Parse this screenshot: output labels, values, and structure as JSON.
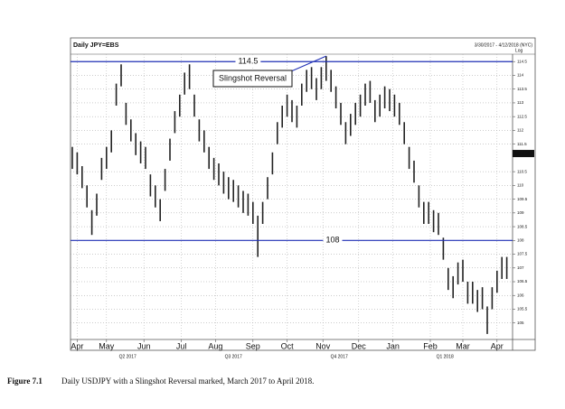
{
  "chart_data": {
    "type": "hilo",
    "title": "Daily JPY=EBS",
    "subtitle": "3/30/2017 - 4/12/2018 (NYC)",
    "scale_label": "Log",
    "log_scale": false,
    "grid": true,
    "color": "#222222",
    "line_color": "#1f2fb5",
    "x": [
      0,
      3,
      6,
      9,
      12,
      15,
      18,
      21,
      24,
      27,
      30,
      33,
      36,
      39,
      42,
      45,
      48,
      51,
      54,
      57,
      60,
      63,
      66,
      69,
      72,
      75,
      78,
      81,
      84,
      87,
      90,
      93,
      96,
      99,
      102,
      105,
      108,
      111,
      114,
      117,
      120,
      123,
      126,
      129,
      132,
      135,
      138,
      141,
      144,
      147,
      150,
      153,
      156,
      159,
      162,
      165,
      168,
      171,
      174,
      177,
      180,
      183,
      186,
      189,
      192,
      195,
      198,
      201,
      204,
      207,
      210,
      213,
      216,
      219,
      222,
      225,
      228,
      231,
      234,
      237,
      240,
      243,
      246,
      249,
      252,
      255,
      258,
      261,
      264,
      267
    ],
    "high": [
      111.4,
      111.2,
      110.7,
      110.0,
      109.1,
      109.7,
      111.0,
      111.4,
      112.0,
      113.7,
      114.4,
      113.0,
      112.4,
      111.9,
      111.6,
      111.4,
      110.4,
      110.0,
      109.5,
      110.6,
      111.7,
      112.7,
      113.3,
      114.1,
      114.4,
      113.3,
      112.4,
      112.0,
      111.4,
      111.0,
      110.8,
      110.5,
      110.3,
      110.2,
      110.0,
      109.8,
      109.7,
      109.4,
      108.9,
      109.4,
      110.3,
      111.2,
      112.3,
      112.9,
      113.3,
      113.1,
      112.9,
      113.7,
      114.2,
      114.3,
      113.9,
      114.3,
      114.7,
      114.2,
      113.6,
      113.0,
      112.3,
      112.6,
      113.0,
      113.3,
      113.7,
      113.8,
      113.1,
      113.3,
      113.6,
      113.5,
      113.3,
      113.0,
      112.3,
      111.4,
      110.9,
      110.0,
      109.4,
      109.4,
      109.1,
      109.0,
      108.1,
      107.0,
      106.7,
      107.2,
      107.3,
      106.5,
      106.5,
      106.2,
      106.3,
      105.6,
      106.3,
      106.9,
      107.4,
      107.4
    ],
    "low": [
      110.6,
      110.4,
      109.9,
      109.2,
      108.2,
      108.9,
      110.2,
      110.6,
      111.2,
      112.9,
      113.6,
      112.2,
      111.6,
      111.1,
      110.8,
      110.6,
      109.6,
      109.2,
      108.7,
      109.8,
      110.9,
      111.9,
      112.5,
      113.3,
      113.5,
      112.5,
      111.6,
      111.2,
      110.6,
      110.2,
      110.0,
      109.7,
      109.5,
      109.4,
      109.2,
      109.0,
      108.9,
      108.6,
      107.4,
      108.6,
      109.5,
      110.4,
      111.5,
      112.1,
      112.5,
      112.3,
      112.1,
      112.9,
      113.4,
      113.5,
      113.1,
      113.5,
      113.8,
      113.4,
      112.8,
      112.2,
      111.5,
      111.8,
      112.2,
      112.5,
      112.9,
      113.0,
      112.3,
      112.5,
      112.8,
      112.7,
      112.5,
      112.2,
      111.5,
      110.6,
      110.1,
      109.2,
      108.6,
      108.6,
      108.3,
      108.2,
      107.3,
      106.2,
      105.9,
      106.4,
      106.5,
      105.7,
      105.7,
      105.4,
      105.5,
      104.6,
      105.5,
      106.1,
      106.6,
      106.6
    ],
    "xlim": [
      0,
      270
    ],
    "xticks": [
      {
        "value": 3,
        "label": "Apr"
      },
      {
        "value": 21,
        "label": "May"
      },
      {
        "value": 44,
        "label": "Jun"
      },
      {
        "value": 67,
        "label": "Jul"
      },
      {
        "value": 88,
        "label": "Aug"
      },
      {
        "value": 111,
        "label": "Sep"
      },
      {
        "value": 132,
        "label": "Oct"
      },
      {
        "value": 154,
        "label": "Nov"
      },
      {
        "value": 176,
        "label": "Dec"
      },
      {
        "value": 197,
        "label": "Jan"
      },
      {
        "value": 220,
        "label": "Feb"
      },
      {
        "value": 240,
        "label": "Mar"
      },
      {
        "value": 261,
        "label": "Apr"
      }
    ],
    "quarter_ticks": [
      {
        "value": 34,
        "label": "Q2 2017"
      },
      {
        "value": 99,
        "label": "Q3 2017"
      },
      {
        "value": 164,
        "label": "Q4 2017"
      },
      {
        "value": 229,
        "label": "Q1 2018"
      }
    ],
    "ylim": [
      104.4,
      114.77
    ],
    "yticks": [
      105,
      105.5,
      106,
      106.5,
      107,
      107.5,
      108,
      108.5,
      109,
      109.5,
      110,
      110.5,
      111.5,
      112,
      112.5,
      113,
      113.5,
      114,
      114.5
    ],
    "price_tag": 111.159,
    "hlines": [
      {
        "value": 114.5,
        "label_x": 108
      },
      {
        "value": 108,
        "label_x": 160
      }
    ],
    "annotation": {
      "text": "Slingshot Reversal",
      "x": 156,
      "y": 114.7
    }
  },
  "caption": {
    "label": "Figure 7.1",
    "text": "Daily USDJPY with a Slingshot Reversal marked, March 2017 to April 2018."
  }
}
